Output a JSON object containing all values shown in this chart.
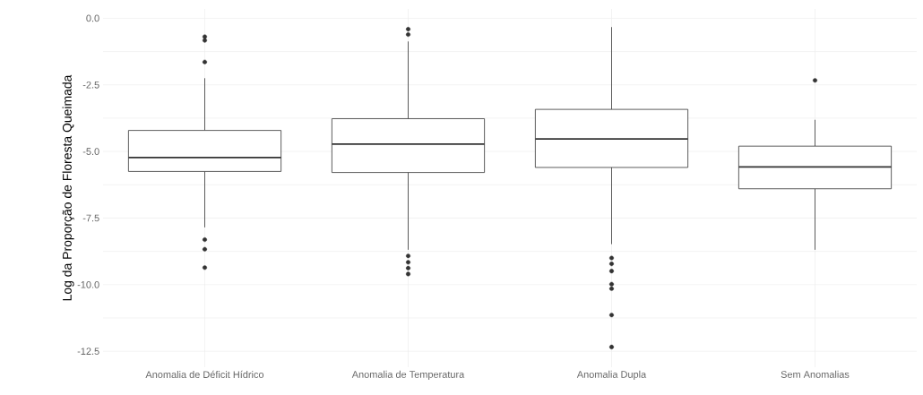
{
  "chart_data": {
    "type": "box",
    "ylabel": "Log da Proporção de Floresta Queimada",
    "categories": [
      "Anomalia de Déficit Hídrico",
      "Anomalia de Temperatura",
      "Anomalia Dupla",
      "Sem Anomalias"
    ],
    "color": "#333333",
    "boxes": [
      {
        "low": -7.85,
        "q1": -5.75,
        "median": -5.23,
        "q3": -4.21,
        "high": -2.25,
        "outliers": [
          -0.69,
          -0.83,
          -1.64,
          -8.31,
          -8.67,
          -9.36
        ]
      },
      {
        "low": -8.69,
        "q1": -5.79,
        "median": -4.72,
        "q3": -3.77,
        "high": -0.87,
        "outliers": [
          -0.41,
          -0.61,
          -8.92,
          -9.16,
          -9.38,
          -9.6
        ]
      },
      {
        "low": -8.48,
        "q1": -5.6,
        "median": -4.53,
        "q3": -3.42,
        "high": -0.33,
        "outliers": [
          -9.0,
          -9.22,
          -9.49,
          -9.98,
          -10.15,
          -11.14,
          -12.34
        ]
      },
      {
        "low": -8.69,
        "q1": -6.4,
        "median": -5.58,
        "q3": -4.8,
        "high": -3.81,
        "outliers": [
          -2.33
        ]
      }
    ],
    "ylim": [
      -13.1,
      0.35
    ],
    "yticks": [
      {
        "value": 0,
        "label": "0.0"
      },
      {
        "value": -1.25,
        "label": null
      },
      {
        "value": -2.5,
        "label": "-2.5"
      },
      {
        "value": -3.75,
        "label": null
      },
      {
        "value": -5,
        "label": "-5.0"
      },
      {
        "value": -6.25,
        "label": null
      },
      {
        "value": -7.5,
        "label": "-7.5"
      },
      {
        "value": -8.75,
        "label": null
      },
      {
        "value": -10,
        "label": "-10.0"
      },
      {
        "value": -11.25,
        "label": null
      },
      {
        "value": -12.5,
        "label": "-12.5"
      }
    ],
    "grid": true
  }
}
